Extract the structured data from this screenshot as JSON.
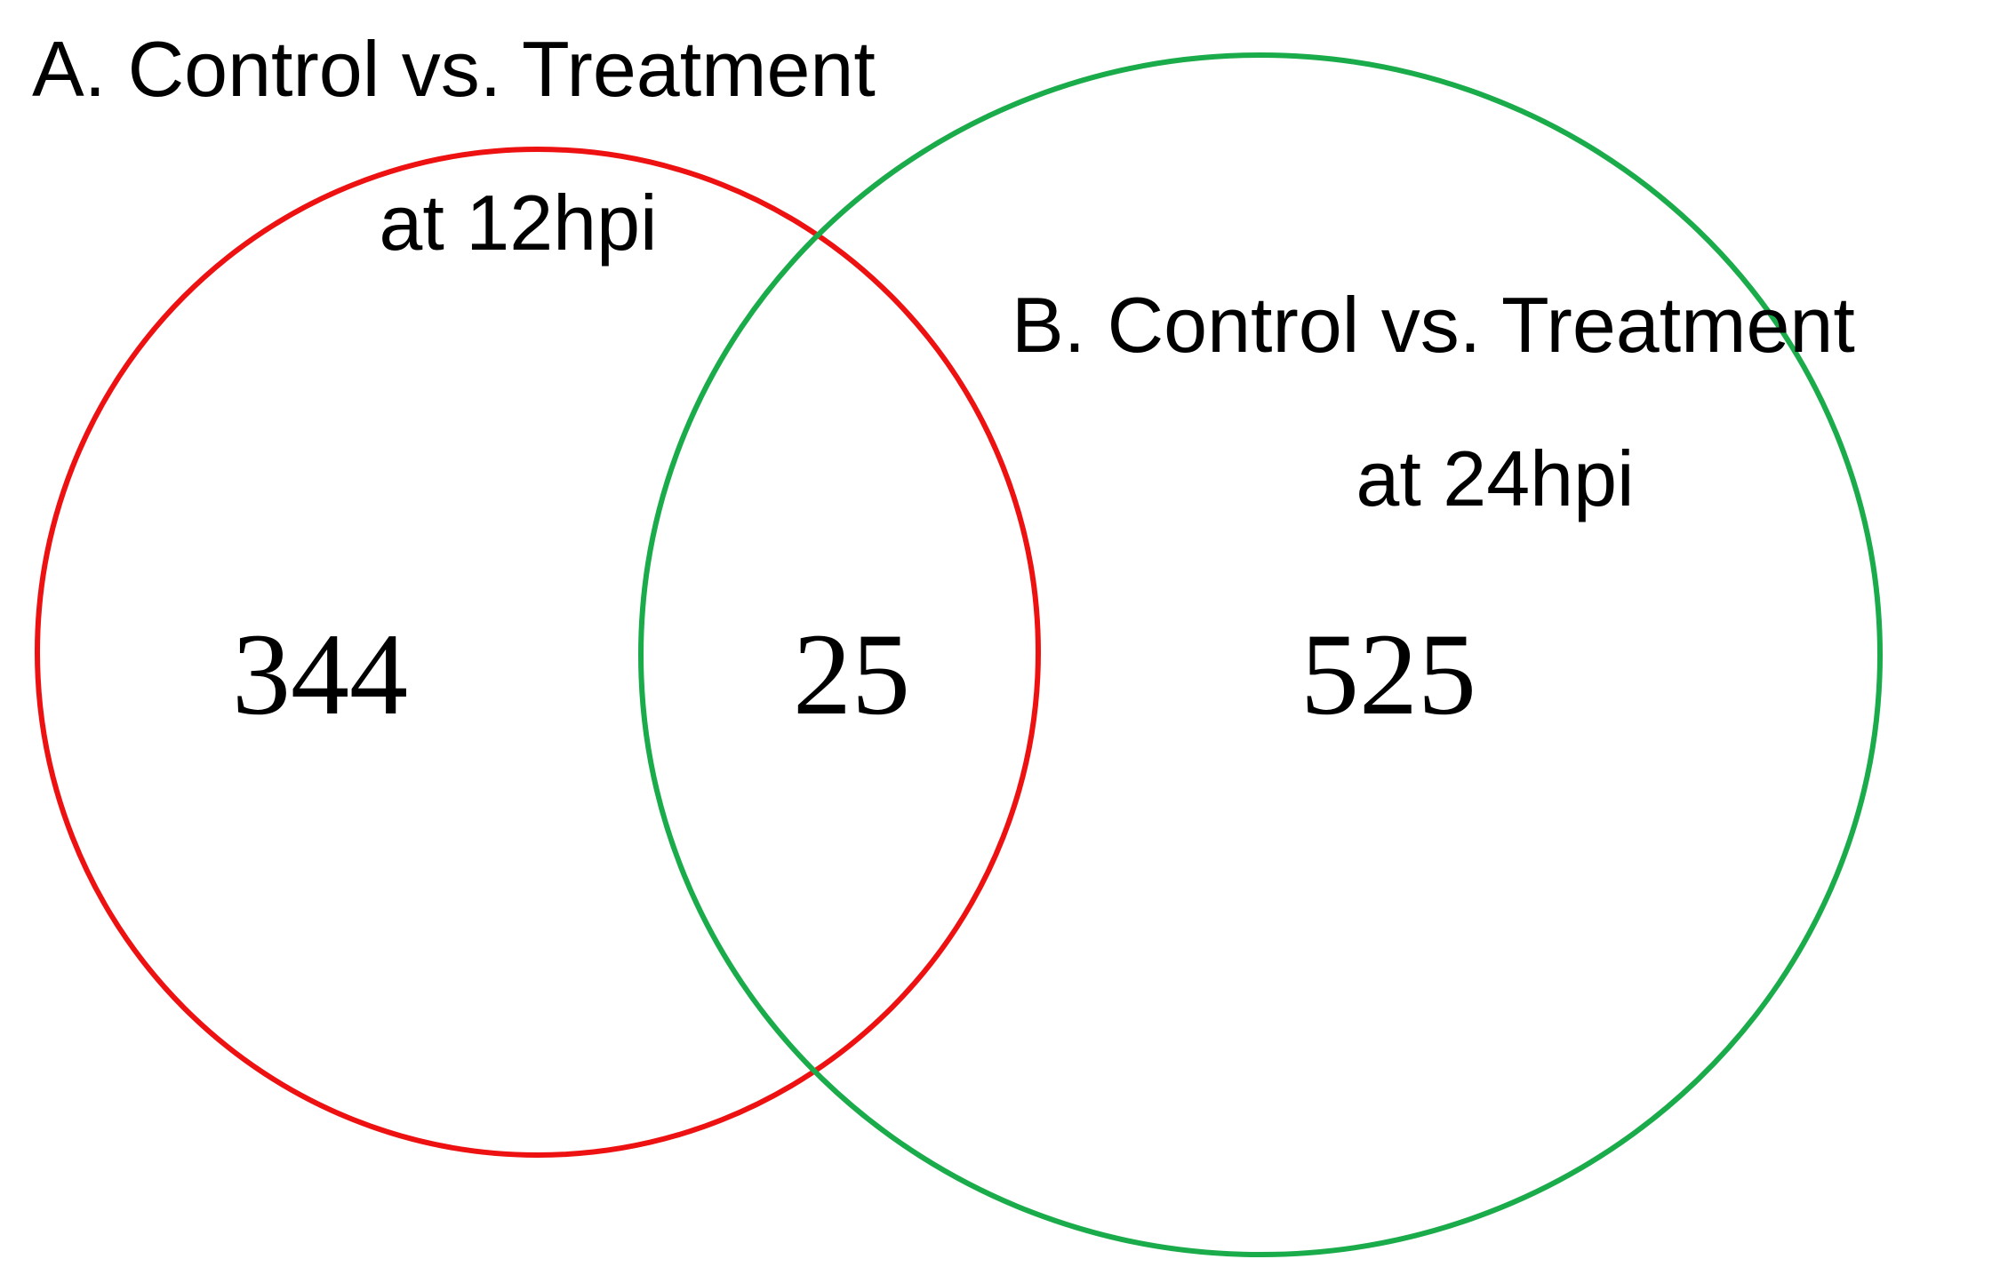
{
  "sets": [
    {
      "label": [
        "A. Control vs. Treatment",
        "at 12hpi"
      ],
      "color": "#ee1111"
    },
    {
      "label": [
        "B. Control vs. Treatment",
        "at 24hpi"
      ],
      "color": "#1aab4a"
    }
  ],
  "regions": [
    {
      "count": 344
    },
    {
      "count": 25
    },
    {
      "count": 525
    }
  ]
}
